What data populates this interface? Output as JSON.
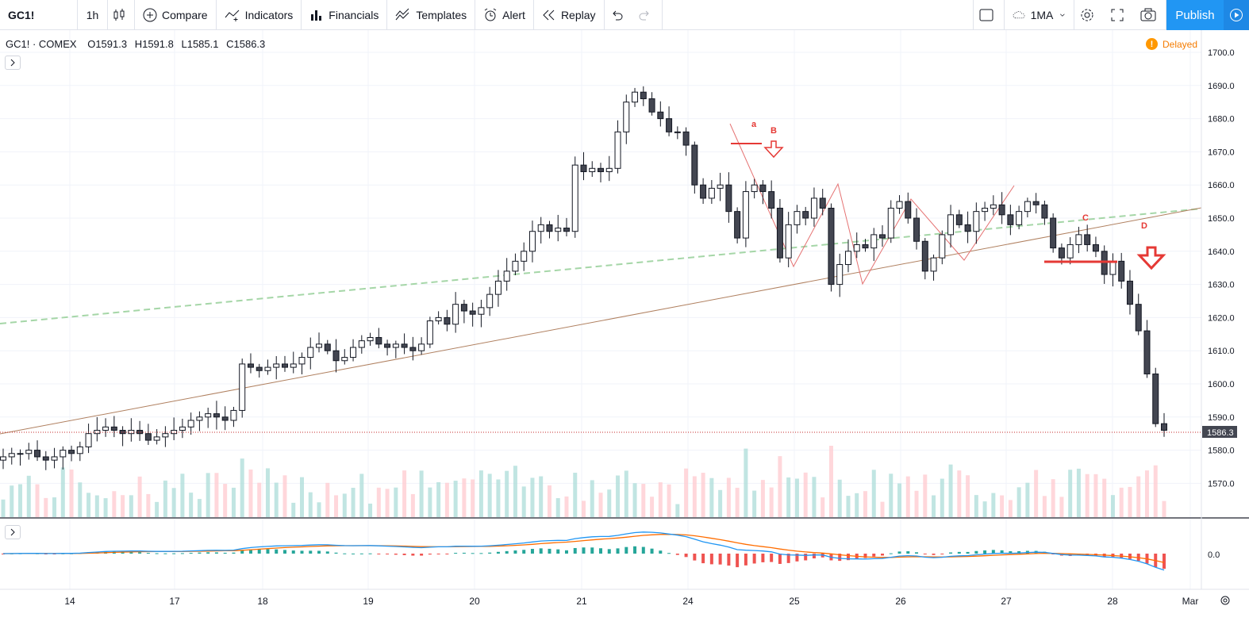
{
  "toolbar": {
    "symbol": "GC1!",
    "interval": "1h",
    "compare_label": "Compare",
    "indicators_label": "Indicators",
    "financials_label": "Financials",
    "templates_label": "Templates",
    "alert_label": "Alert",
    "replay_label": "Replay",
    "layout_label": "1MA",
    "publish_label": "Publish"
  },
  "legend": {
    "symbol": "GC1! · COMEX",
    "open": "O1591.3",
    "high": "H1591.8",
    "low": "L1585.1",
    "close": "C1586.3"
  },
  "status": {
    "delayed_label": "Delayed"
  },
  "colors": {
    "up": "#131722",
    "down": "#131722",
    "accent": "#2196f3",
    "annotation": "#e53935",
    "trend_green": "#8bc34a",
    "trend_brown": "#a1887f"
  },
  "price_axis": {
    "labels": [
      "1700.0",
      "1690.0",
      "1680.0",
      "1670.0",
      "1660.0",
      "1650.0",
      "1640.0",
      "1630.0",
      "1620.0",
      "1610.0",
      "1600.0",
      "1590.0",
      "1580.0",
      "1570.0"
    ],
    "current_price_label": "1586.3",
    "osc_zero_label": "0.0"
  },
  "time_axis": {
    "labels": [
      "14",
      "17",
      "18",
      "19",
      "20",
      "21",
      "24",
      "25",
      "26",
      "27",
      "28",
      "Mar"
    ]
  },
  "annotations": {
    "a": "a",
    "b": "B",
    "c": "C",
    "d": "D"
  },
  "chart_data": {
    "type": "candlestick",
    "title": "",
    "ylim": [
      1565,
      1705
    ],
    "x_labels": [
      "14",
      "17",
      "18",
      "19",
      "20",
      "21",
      "24",
      "25",
      "26",
      "27",
      "28",
      "Mar"
    ],
    "close_series": [
      1578,
      1579,
      1579,
      1580,
      1578,
      1577,
      1578,
      1580,
      1579,
      1581,
      1585,
      1586,
      1587,
      1586,
      1585,
      1586,
      1585,
      1583,
      1584,
      1585,
      1586,
      1587,
      1589,
      1590,
      1591,
      1590,
      1589,
      1592,
      1606,
      1605,
      1604,
      1605,
      1606,
      1605,
      1606,
      1608,
      1611,
      1612,
      1610,
      1607,
      1608,
      1611,
      1613,
      1614,
      1612,
      1611,
      1612,
      1611,
      1610,
      1612,
      1619,
      1620,
      1618,
      1624,
      1622,
      1621,
      1623,
      1627,
      1631,
      1634,
      1637,
      1640,
      1646,
      1648,
      1646,
      1647,
      1646,
      1666,
      1664,
      1665,
      1664,
      1665,
      1676,
      1685,
      1688,
      1686,
      1682,
      1680,
      1676,
      1676,
      1672,
      1660,
      1656,
      1659,
      1660,
      1652,
      1644,
      1658,
      1660,
      1658,
      1653,
      1638,
      1648,
      1652,
      1650,
      1656,
      1653,
      1630,
      1636,
      1640,
      1642,
      1641,
      1645,
      1644,
      1653,
      1655,
      1650,
      1643,
      1634,
      1638,
      1645,
      1651,
      1648,
      1646,
      1652,
      1653,
      1654,
      1651,
      1648,
      1652,
      1655,
      1654,
      1650,
      1641,
      1638,
      1642,
      1645,
      1642,
      1640,
      1633,
      1637,
      1631,
      1624,
      1616,
      1603,
      1588,
      1586
    ]
  }
}
